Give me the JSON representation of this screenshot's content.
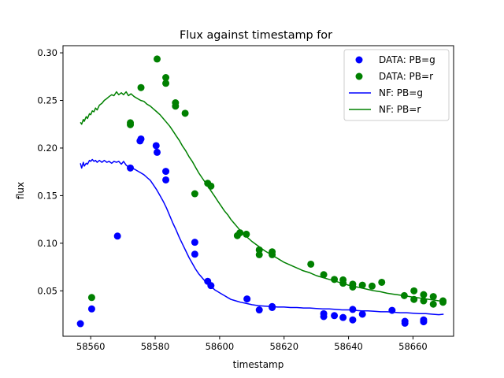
{
  "chart_data": {
    "type": "scatter",
    "title": "Flux against timestamp for",
    "xlabel": "timestamp",
    "ylabel": "flux",
    "xlim": [
      58551.4,
      58672.6
    ],
    "ylim": [
      0.0023,
      0.3075
    ],
    "xticks": [
      58560,
      58580,
      58600,
      58620,
      58640,
      58660
    ],
    "yticks": [
      0.05,
      0.1,
      0.15,
      0.2,
      0.25,
      0.3
    ],
    "ytick_labels": [
      "0.05",
      "0.10",
      "0.15",
      "0.20",
      "0.25",
      "0.30"
    ],
    "grid": false,
    "legend": "top-right",
    "colors": {
      "g": "#0000ff",
      "r": "#008000"
    },
    "series": [
      {
        "name": "DATA: PB=g",
        "kind": "points",
        "color": "#0000ff",
        "x": [
          58556.8,
          58560.3,
          58568.3,
          58572.3,
          58575.3,
          58575.6,
          58580.3,
          58580.6,
          58583.3,
          58583.3,
          58592.3,
          58592.3,
          58596.3,
          58597.3,
          58608.5,
          58612.3,
          58616.3,
          58616.3,
          58632.3,
          58632.3,
          58635.6,
          58638.3,
          58641.3,
          58641.3,
          58644.3,
          58653.5,
          58657.5,
          58657.5,
          58663.3,
          58663.3
        ],
        "y": [
          0.0155,
          0.031,
          0.1075,
          0.179,
          0.2075,
          0.2095,
          0.2025,
          0.1955,
          0.1755,
          0.1665,
          0.101,
          0.0885,
          0.06,
          0.0555,
          0.0415,
          0.03,
          0.0335,
          0.0325,
          0.026,
          0.023,
          0.024,
          0.022,
          0.0305,
          0.0195,
          0.0255,
          0.0295,
          0.018,
          0.016,
          0.0195,
          0.0175
        ]
      },
      {
        "name": "DATA: PB=r",
        "kind": "points",
        "color": "#008000",
        "x": [
          58560.3,
          58572.3,
          58572.3,
          58575.6,
          58580.6,
          58583.3,
          58583.3,
          58586.3,
          58586.3,
          58589.3,
          58592.3,
          58596.3,
          58597.3,
          58605.5,
          58606.3,
          58608.3,
          58612.3,
          58612.3,
          58616.3,
          58616.3,
          58628.3,
          58632.3,
          58635.6,
          58638.3,
          58638.3,
          58641.3,
          58641.3,
          58644.3,
          58647.3,
          58650.3,
          58657.3,
          58660.3,
          58660.3,
          58663.3,
          58663.3,
          58666.3,
          58666.3,
          58669.3,
          58669.3
        ],
        "y": [
          0.043,
          0.2265,
          0.2245,
          0.2635,
          0.2935,
          0.274,
          0.268,
          0.2475,
          0.244,
          0.2365,
          0.152,
          0.163,
          0.16,
          0.108,
          0.111,
          0.1095,
          0.093,
          0.088,
          0.091,
          0.088,
          0.078,
          0.067,
          0.062,
          0.0615,
          0.058,
          0.057,
          0.054,
          0.056,
          0.055,
          0.059,
          0.045,
          0.05,
          0.041,
          0.046,
          0.0395,
          0.044,
          0.036,
          0.0395,
          0.038
        ]
      },
      {
        "name": "NF: PB=g",
        "kind": "line",
        "color": "#0000ff",
        "x": [
          58556.8,
          58557.2,
          58557.7,
          58558.0,
          58558.6,
          58559.0,
          58559.6,
          58560.0,
          58560.5,
          58561.0,
          58561.5,
          58562.0,
          58562.7,
          58563.5,
          58564.2,
          58565.0,
          58565.7,
          58566.5,
          58567.2,
          58568.0,
          58568.7,
          58569.5,
          58570.2,
          58571.0,
          58571.7,
          58572.5,
          58573.5,
          58574.5,
          58575.5,
          58576.5,
          58577.5,
          58578.5,
          58579.5,
          58580.5,
          58581.5,
          58582.5,
          58583.5,
          58584.5,
          58585.5,
          58586.5,
          58587.5,
          58588.5,
          58589.5,
          58590.5,
          58591.5,
          58592.5,
          58593.5,
          58594.5,
          58595.5,
          58596.5,
          58597.5,
          58598.5,
          58599.5,
          58600.5,
          58601.5,
          58602.5,
          58603.5,
          58604.5,
          58605.5,
          58606.5,
          58608.0,
          58610.0,
          58612.0,
          58614.0,
          58616.0,
          58618.0,
          58620.0,
          58622.0,
          58624.0,
          58626.0,
          58628.0,
          58630.0,
          58632.0,
          58634.0,
          58636.0,
          58638.0,
          58640.0,
          58642.0,
          58644.0,
          58646.0,
          58648.0,
          58650.0,
          58652.0,
          58654.0,
          58656.0,
          58658.0,
          58660.0,
          58662.0,
          58664.0,
          58666.0,
          58668.0,
          58669.5
        ],
        "y": [
          0.184,
          0.179,
          0.185,
          0.181,
          0.184,
          0.183,
          0.187,
          0.186,
          0.188,
          0.186,
          0.187,
          0.185,
          0.187,
          0.185,
          0.187,
          0.185,
          0.186,
          0.184,
          0.186,
          0.185,
          0.186,
          0.183,
          0.186,
          0.182,
          0.18,
          0.179,
          0.178,
          0.176,
          0.174,
          0.172,
          0.169,
          0.166,
          0.161,
          0.156,
          0.15,
          0.144,
          0.137,
          0.129,
          0.121,
          0.114,
          0.106,
          0.099,
          0.092,
          0.085,
          0.079,
          0.073,
          0.068,
          0.064,
          0.06,
          0.057,
          0.054,
          0.051,
          0.049,
          0.047,
          0.045,
          0.043,
          0.041,
          0.04,
          0.039,
          0.038,
          0.037,
          0.0355,
          0.0345,
          0.034,
          0.0335,
          0.033,
          0.033,
          0.0325,
          0.0325,
          0.032,
          0.032,
          0.0315,
          0.031,
          0.031,
          0.0305,
          0.03,
          0.03,
          0.0295,
          0.029,
          0.029,
          0.0285,
          0.028,
          0.028,
          0.0275,
          0.027,
          0.027,
          0.0265,
          0.026,
          0.026,
          0.0255,
          0.025,
          0.0255
        ]
      },
      {
        "name": "NF: PB=r",
        "kind": "line",
        "color": "#008000",
        "x": [
          58556.8,
          58557.2,
          58557.7,
          58558.0,
          58558.6,
          58559.0,
          58559.6,
          58560.0,
          58560.5,
          58561.0,
          58561.5,
          58562.0,
          58562.7,
          58563.5,
          58564.2,
          58565.0,
          58565.7,
          58566.5,
          58567.2,
          58568.0,
          58568.7,
          58569.5,
          58570.2,
          58571.0,
          58571.7,
          58572.5,
          58573.5,
          58574.5,
          58575.5,
          58576.5,
          58577.5,
          58578.5,
          58579.5,
          58580.5,
          58581.5,
          58582.5,
          58583.5,
          58584.5,
          58585.5,
          58586.5,
          58587.5,
          58588.5,
          58589.5,
          58590.5,
          58591.5,
          58592.5,
          58593.5,
          58594.5,
          58595.5,
          58596.5,
          58597.5,
          58598.5,
          58599.5,
          58600.5,
          58601.5,
          58602.5,
          58603.5,
          58604.5,
          58605.5,
          58606.5,
          58608.0,
          58610.0,
          58612.0,
          58614.0,
          58616.0,
          58618.0,
          58620.0,
          58622.0,
          58624.0,
          58626.0,
          58628.0,
          58630.0,
          58632.0,
          58634.0,
          58636.0,
          58638.0,
          58640.0,
          58642.0,
          58644.0,
          58646.0,
          58648.0,
          58650.0,
          58652.0,
          58654.0,
          58656.0,
          58658.0,
          58660.0,
          58662.0,
          58664.0,
          58666.0,
          58668.0,
          58669.5
        ],
        "y": [
          0.227,
          0.225,
          0.23,
          0.228,
          0.233,
          0.231,
          0.236,
          0.235,
          0.239,
          0.238,
          0.242,
          0.24,
          0.245,
          0.247,
          0.25,
          0.252,
          0.254,
          0.256,
          0.255,
          0.259,
          0.256,
          0.258,
          0.256,
          0.259,
          0.255,
          0.257,
          0.254,
          0.252,
          0.25,
          0.249,
          0.246,
          0.244,
          0.241,
          0.238,
          0.235,
          0.231,
          0.227,
          0.223,
          0.218,
          0.213,
          0.208,
          0.202,
          0.197,
          0.191,
          0.186,
          0.18,
          0.174,
          0.169,
          0.164,
          0.159,
          0.154,
          0.149,
          0.144,
          0.139,
          0.134,
          0.13,
          0.125,
          0.121,
          0.117,
          0.113,
          0.108,
          0.102,
          0.097,
          0.092,
          0.088,
          0.084,
          0.08,
          0.077,
          0.074,
          0.071,
          0.069,
          0.066,
          0.064,
          0.062,
          0.06,
          0.058,
          0.056,
          0.0545,
          0.053,
          0.0515,
          0.05,
          0.049,
          0.0475,
          0.0465,
          0.0455,
          0.0445,
          0.0435,
          0.0425,
          0.0415,
          0.0405,
          0.0395,
          0.039
        ]
      }
    ]
  }
}
